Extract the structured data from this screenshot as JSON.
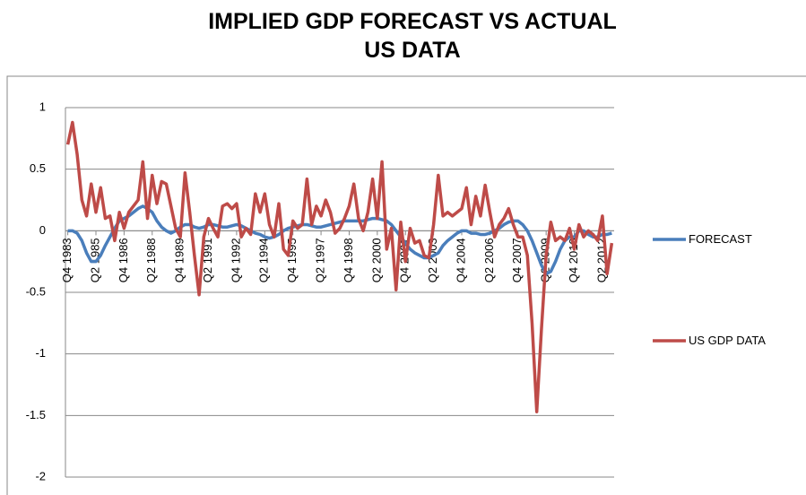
{
  "chart_data": {
    "type": "line",
    "title": "IMPLIED GDP FORECAST VS ACTUAL US DATA",
    "categories": [
      "Q4 1983",
      null,
      null,
      null,
      null,
      null,
      "Q2 1985",
      null,
      null,
      null,
      null,
      null,
      "Q4 1986",
      null,
      null,
      null,
      null,
      null,
      "Q2 1988",
      null,
      null,
      null,
      null,
      null,
      "Q4 1989",
      null,
      null,
      null,
      null,
      null,
      "Q2 1991",
      null,
      null,
      null,
      null,
      null,
      "Q4 1992",
      null,
      null,
      null,
      null,
      null,
      "Q2 1994",
      null,
      null,
      null,
      null,
      null,
      "Q4 1995",
      null,
      null,
      null,
      null,
      null,
      "Q2 1997",
      null,
      null,
      null,
      null,
      null,
      "Q4 1998",
      null,
      null,
      null,
      null,
      null,
      "Q2 2000",
      null,
      null,
      null,
      null,
      null,
      "Q4 2001",
      null,
      null,
      null,
      null,
      null,
      "Q2 2003",
      null,
      null,
      null,
      null,
      null,
      "Q4 2004",
      null,
      null,
      null,
      null,
      null,
      "Q2 2006",
      null,
      null,
      null,
      null,
      null,
      "Q4 2007",
      null,
      null,
      null,
      null,
      null,
      "Q2 2009",
      null,
      null,
      null,
      null,
      null,
      "Q4 2010",
      null,
      null,
      null,
      null,
      null,
      "Q2 2012",
      null,
      null
    ],
    "series": [
      {
        "name": "FORECAST",
        "color": "#4a7ebb",
        "values": [
          0.0,
          0.0,
          -0.02,
          -0.08,
          -0.18,
          -0.25,
          -0.25,
          -0.2,
          -0.12,
          -0.05,
          0.02,
          0.08,
          0.1,
          0.12,
          0.15,
          0.18,
          0.2,
          0.18,
          0.15,
          0.08,
          0.03,
          0.0,
          -0.02,
          0.0,
          0.03,
          0.05,
          0.05,
          0.03,
          0.02,
          0.03,
          0.05,
          0.05,
          0.04,
          0.03,
          0.03,
          0.04,
          0.05,
          0.04,
          0.02,
          0.0,
          -0.02,
          -0.03,
          -0.05,
          -0.06,
          -0.05,
          -0.03,
          0.0,
          0.02,
          0.03,
          0.04,
          0.05,
          0.05,
          0.04,
          0.03,
          0.03,
          0.04,
          0.05,
          0.06,
          0.07,
          0.08,
          0.08,
          0.08,
          0.08,
          0.08,
          0.09,
          0.1,
          0.1,
          0.09,
          0.08,
          0.05,
          0.0,
          -0.05,
          -0.1,
          -0.15,
          -0.18,
          -0.2,
          -0.22,
          -0.22,
          -0.2,
          -0.18,
          -0.12,
          -0.08,
          -0.05,
          -0.02,
          0.0,
          0.0,
          -0.02,
          -0.02,
          -0.03,
          -0.03,
          -0.02,
          0.0,
          0.02,
          0.05,
          0.07,
          0.08,
          0.08,
          0.05,
          0.0,
          -0.08,
          -0.18,
          -0.28,
          -0.35,
          -0.33,
          -0.25,
          -0.15,
          -0.08,
          -0.05,
          -0.05,
          0.0,
          0.0,
          -0.03,
          -0.05,
          -0.05,
          -0.03,
          -0.03,
          -0.02
        ]
      },
      {
        "name": "US GDP DATA",
        "color": "#be4b48",
        "values": [
          0.7,
          0.88,
          0.62,
          0.25,
          0.12,
          0.38,
          0.15,
          0.35,
          0.1,
          0.12,
          -0.08,
          0.15,
          0.02,
          0.15,
          0.2,
          0.25,
          0.56,
          0.1,
          0.45,
          0.22,
          0.4,
          0.38,
          0.2,
          0.02,
          -0.05,
          0.47,
          0.15,
          -0.2,
          -0.52,
          -0.05,
          0.1,
          0.02,
          -0.05,
          0.2,
          0.22,
          0.18,
          0.22,
          -0.05,
          0.02,
          -0.03,
          0.3,
          0.15,
          0.3,
          0.05,
          -0.05,
          0.22,
          -0.15,
          -0.2,
          0.08,
          0.02,
          0.05,
          0.42,
          0.05,
          0.2,
          0.12,
          0.25,
          0.15,
          -0.02,
          0.02,
          0.1,
          0.2,
          0.38,
          0.1,
          0.0,
          0.15,
          0.42,
          0.1,
          0.56,
          -0.15,
          0.02,
          -0.48,
          0.07,
          -0.25,
          0.02,
          -0.1,
          -0.08,
          -0.2,
          -0.22,
          0.05,
          0.45,
          0.12,
          0.15,
          0.12,
          0.15,
          0.18,
          0.35,
          0.05,
          0.28,
          0.12,
          0.37,
          0.15,
          -0.05,
          0.05,
          0.1,
          0.18,
          0.05,
          -0.05,
          -0.05,
          -0.2,
          -0.75,
          -1.47,
          -0.8,
          -0.2,
          0.07,
          -0.08,
          -0.05,
          -0.08,
          0.02,
          -0.15,
          0.05,
          -0.05,
          0.0,
          -0.03,
          -0.08,
          0.12,
          -0.35,
          -0.1
        ]
      }
    ],
    "ylim": [
      -2,
      1
    ],
    "yticks": [
      -2,
      -1.5,
      -1,
      -0.5,
      0,
      0.5,
      1
    ],
    "grid": true,
    "legend": "right"
  }
}
